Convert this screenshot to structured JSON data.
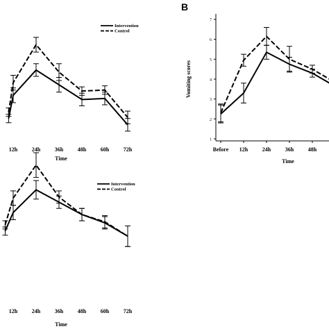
{
  "chart_data": [
    {
      "type": "line",
      "panel_label": "",
      "title": "",
      "xlabel": "Time",
      "ylabel": "",
      "categories": [
        "12h",
        "24h",
        "36h",
        "48h",
        "60h",
        "72h"
      ],
      "x_visible_from": 0.8,
      "x_visible_to": 6.05,
      "ylim": [
        1.5,
        7
      ],
      "yticks": [],
      "legend_position": "top-right",
      "grid": false,
      "series": [
        {
          "name": "Intervention",
          "style": "solid",
          "x": [
            0.8,
            1,
            2,
            3,
            4,
            5,
            6
          ],
          "values": [
            2.3,
            3.4,
            4.6,
            3.9,
            3.2,
            3.25,
            2.0
          ],
          "error": [
            0.2,
            0.35,
            0.3,
            0.35,
            0.3,
            0.3,
            0.3
          ]
        },
        {
          "name": "Control",
          "style": "dashed",
          "x": [
            0.8,
            1,
            2,
            3,
            4,
            5,
            6
          ],
          "values": [
            2.6,
            4.0,
            5.8,
            4.5,
            3.6,
            3.65,
            2.35
          ],
          "error": [
            0.2,
            0.35,
            0.35,
            0.4,
            0.2,
            0.2,
            0.3
          ]
        }
      ]
    },
    {
      "type": "line",
      "panel_label": "B",
      "title": "",
      "xlabel": "Time",
      "ylabel": "Vomiting scores",
      "categories": [
        "Before",
        "12h",
        "24h",
        "36h",
        "48h"
      ],
      "x_visible_from": 0,
      "x_visible_to": 4.9,
      "ylim": [
        1,
        7
      ],
      "yticks": [
        1,
        2,
        3,
        4,
        5,
        6,
        7
      ],
      "legend_position": "top-left",
      "grid": false,
      "series": [
        {
          "name": "Intervention",
          "style": "solid",
          "x": [
            0,
            1,
            2,
            3,
            4,
            4.9
          ],
          "values": [
            2.25,
            3.3,
            5.35,
            4.75,
            4.3,
            3.7
          ],
          "error": [
            0.45,
            0.5,
            0.35,
            0.35,
            0.2,
            0.25
          ]
        },
        {
          "name": "Control",
          "style": "dashed",
          "x": [
            0,
            1,
            2,
            3,
            4,
            4.9
          ],
          "values": [
            2.3,
            4.95,
            6.15,
            5.0,
            4.5,
            3.9
          ],
          "error": [
            0.45,
            0.3,
            0.45,
            0.65,
            0.2,
            0.25
          ]
        }
      ]
    },
    {
      "type": "line",
      "panel_label": "",
      "title": "",
      "xlabel": "Time",
      "ylabel": "",
      "categories": [
        "12h",
        "24h",
        "36h",
        "48h",
        "60h",
        "72h"
      ],
      "x_visible_from": 0.65,
      "x_visible_to": 6.0,
      "ylim": [
        0,
        7
      ],
      "yticks": [],
      "legend_position": "top-right",
      "grid": false,
      "series": [
        {
          "name": "Intervention",
          "style": "solid",
          "x": [
            0.65,
            1,
            2,
            3,
            4,
            5,
            6
          ],
          "values": [
            3.2,
            4.1,
            5.2,
            4.6,
            4.0,
            3.6,
            2.95
          ],
          "error": [
            0.2,
            0.35,
            0.45,
            0.3,
            0.3,
            0.3,
            0.5
          ]
        },
        {
          "name": "Control",
          "style": "dashed",
          "x": [
            0.65,
            1,
            2,
            3,
            4,
            5,
            6
          ],
          "values": [
            3.5,
            4.8,
            6.4,
            4.85,
            4.0,
            3.65,
            2.95
          ],
          "error": [
            0.2,
            0.35,
            0.6,
            0.3,
            0.3,
            0.3,
            0.5
          ]
        }
      ]
    }
  ]
}
